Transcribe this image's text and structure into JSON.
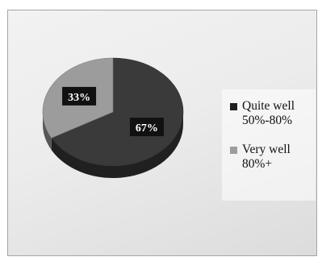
{
  "chart_data": {
    "type": "pie",
    "title": "",
    "legend_position": "right",
    "slices": [
      {
        "label": "Quite well\n50%-80%",
        "value": 67,
        "display": "67%",
        "color": "#3a3a3a"
      },
      {
        "label": "Very well\n80%+",
        "value": 33,
        "display": "33%",
        "color": "#9c9c9c"
      }
    ]
  }
}
